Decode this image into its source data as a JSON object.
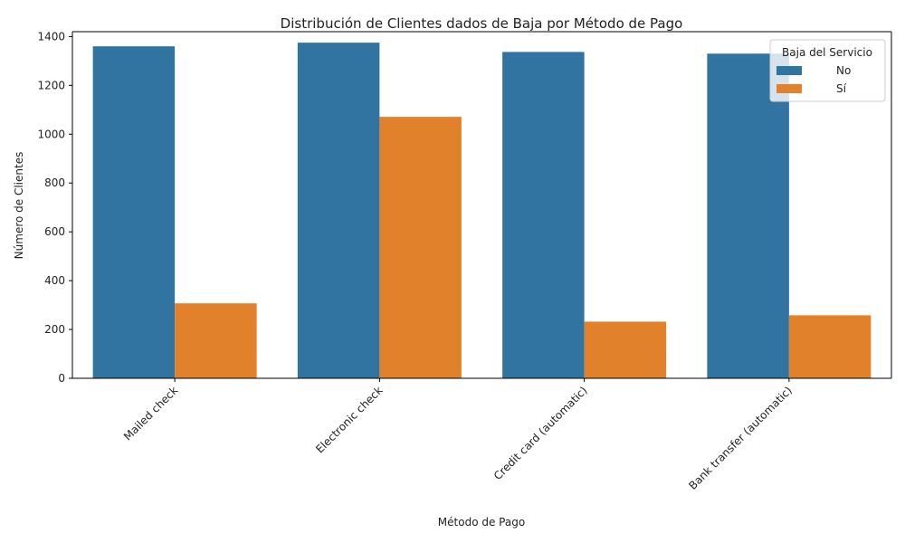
{
  "chart_data": {
    "type": "bar",
    "title": "Distribución de Clientes dados de Baja por Método de Pago",
    "xlabel": "Método de Pago",
    "ylabel": "Número de Clientes",
    "categories": [
      "Mailed check",
      "Electronic check",
      "Credit card (automatic)",
      "Bank transfer (automatic)"
    ],
    "series": [
      {
        "name": "No",
        "color": "#3274a1",
        "values": [
          1360,
          1375,
          1337,
          1330
        ]
      },
      {
        "name": "Sí",
        "color": "#e1812c",
        "values": [
          307,
          1071,
          232,
          258
        ]
      }
    ],
    "ylim": [
      0,
      1420
    ],
    "yticks": [
      0,
      200,
      400,
      600,
      800,
      1000,
      1200,
      1400
    ],
    "grid": false,
    "legend": {
      "title": "Baja del Servicio",
      "placement": "top-right"
    }
  }
}
